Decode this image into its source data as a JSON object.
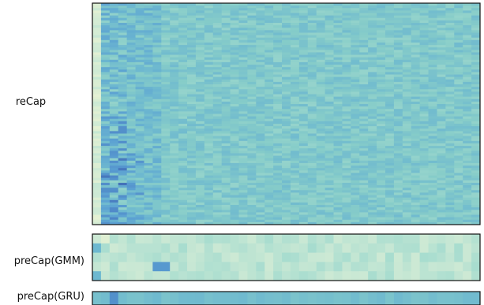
{
  "chart_data": [
    {
      "type": "heatmap",
      "row_label": "reCap",
      "rows": 90,
      "cols": 45,
      "value_range": [
        0,
        1
      ],
      "colormap": [
        "#ffffff",
        "#e4f1d3",
        "#c9e8d4",
        "#a6dccf",
        "#86ccc9",
        "#6cb7d0",
        "#5a9fd2",
        "#4d84c6",
        "#3f66b0"
      ],
      "notes": "dense matrix of attention weights, values mostly 0.40-0.65; first ~8 columns show darker blue blocks with lighter green-yellow column 0"
    },
    {
      "type": "heatmap",
      "row_label": "preCap(GMM)",
      "rows": 5,
      "cols": 45,
      "value_range": [
        0,
        1
      ],
      "colormap": [
        "#ffffff",
        "#e4f1d3",
        "#c9e8d4",
        "#a6dccf",
        "#86ccc9",
        "#6cb7d0",
        "#5a9fd2",
        "#4d84c6",
        "#3f66b0"
      ],
      "notes": "light blue-green cells; a few darker blue cells near columns 0-1 and 7-8"
    },
    {
      "type": "heatmap",
      "row_label": "preCap(GRU)",
      "rows": 1,
      "cols": 45,
      "value_range": [
        0,
        1
      ],
      "colormap": [
        "#ffffff",
        "#e4f1d3",
        "#c9e8d4",
        "#a6dccf",
        "#86ccc9",
        "#6cb7d0",
        "#5a9fd2",
        "#4d84c6",
        "#3f66b0"
      ],
      "notes": "single row of medium blue cells, darker at column 2"
    }
  ]
}
